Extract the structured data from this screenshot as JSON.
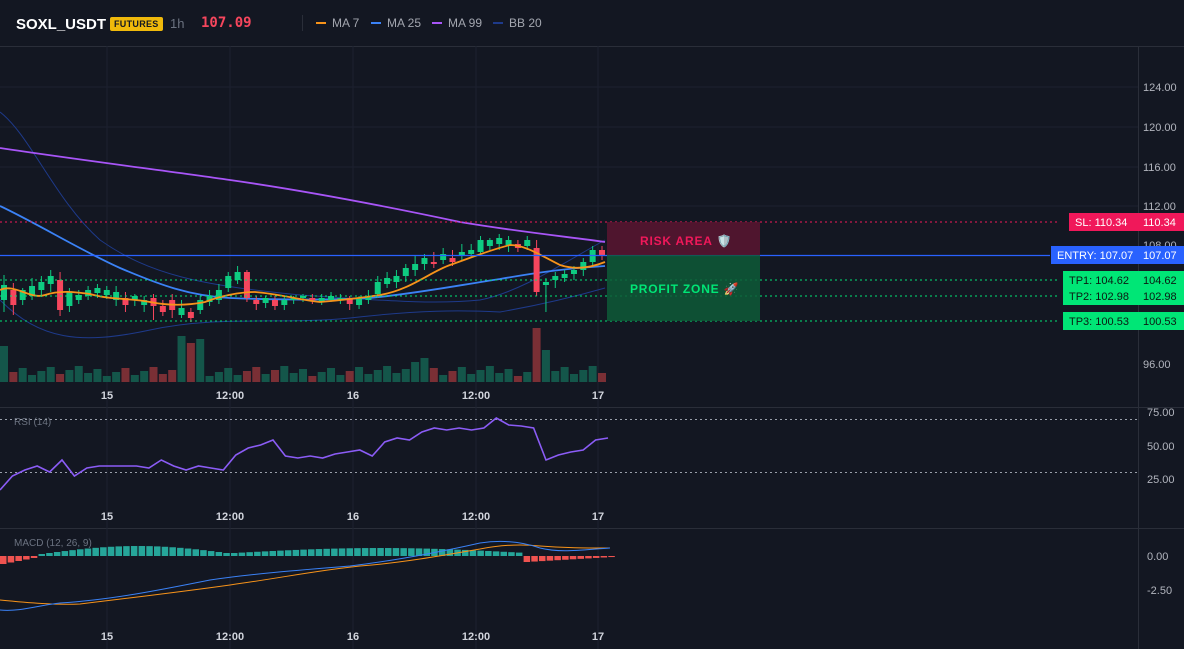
{
  "header": {
    "symbol": "SOXL_USDT",
    "badge": "FUTURES",
    "timeframe": "1h",
    "last_price": "107.09",
    "indicators": [
      {
        "label": "MA 7",
        "color": "#f7931a"
      },
      {
        "label": "MA 25",
        "color": "#3b82f6"
      },
      {
        "label": "MA 99",
        "color": "#a855f7"
      },
      {
        "label": "BB 20",
        "color": "#1e3a8a"
      }
    ]
  },
  "price_axis": {
    "ticks": [
      "124.00",
      "120.00",
      "116.00",
      "112.00",
      "108.00",
      "96.00"
    ]
  },
  "levels": {
    "sl": {
      "label": "SL: 110.34",
      "value": "110.34",
      "color": "#f0185a"
    },
    "entry": {
      "label": "ENTRY: 107.07",
      "value": "107.07",
      "color": "#2962ff"
    },
    "tp1": {
      "label": "TP1: 104.62",
      "value": "104.62",
      "color": "#00e676"
    },
    "tp2": {
      "label": "TP2: 102.98",
      "value": "102.98",
      "color": "#00e676"
    },
    "tp3": {
      "label": "TP3: 100.53",
      "value": "100.53",
      "color": "#00e676"
    }
  },
  "zones": {
    "risk": "RISK AREA 🛡️",
    "profit": "PROFIT ZONE 🚀"
  },
  "time_axis": [
    "15",
    "12:00",
    "16",
    "12:00",
    "17"
  ],
  "rsi": {
    "label": "RSI (14)",
    "ticks": [
      "75.00",
      "50.00",
      "25.00"
    ]
  },
  "macd": {
    "label": "MACD (12, 26, 9)",
    "ticks": [
      "0.00",
      "-2.50"
    ]
  }
}
